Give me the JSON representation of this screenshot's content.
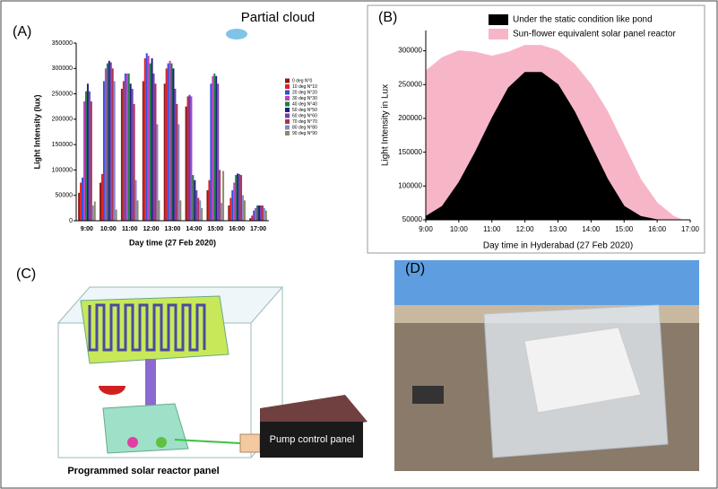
{
  "panel_labels": [
    "(A)",
    "(B)",
    "(C)",
    "(D)"
  ],
  "diagram": {
    "labels": [
      "Programmed solar reactor panel",
      "Pump control panel"
    ]
  },
  "chart_data": [
    {
      "type": "bar",
      "title": "Partial cloud",
      "x_label": "Day time (27 Feb 2020)",
      "y_label": "Light Intensity (lux)",
      "categories": [
        "9:00",
        "10:00",
        "11:00",
        "12:00",
        "13:00",
        "14:00",
        "15:00",
        "16:00",
        "17:00"
      ],
      "ylim": [
        0,
        350000
      ],
      "yticks": [
        0,
        50000,
        100000,
        150000,
        200000,
        250000,
        300000,
        350000
      ],
      "legend": "right",
      "series": [
        {
          "name": "0 deg N°0",
          "color": "#8b1a1a",
          "values": [
            55000,
            75000,
            260000,
            275000,
            270000,
            225000,
            60000,
            30000,
            5000
          ]
        },
        {
          "name": "10 deg N°10",
          "color": "#e02020",
          "values": [
            75000,
            92000,
            275000,
            320000,
            300000,
            245000,
            80000,
            45000,
            10000
          ]
        },
        {
          "name": "20 deg N°20",
          "color": "#3050e0",
          "values": [
            85000,
            275000,
            290000,
            330000,
            310000,
            248000,
            270000,
            60000,
            20000
          ]
        },
        {
          "name": "30 deg N°30",
          "color": "#c040c0",
          "values": [
            235000,
            300000,
            290000,
            325000,
            315000,
            245000,
            285000,
            75000,
            25000
          ]
        },
        {
          "name": "40 deg N°40",
          "color": "#208040",
          "values": [
            255000,
            310000,
            290000,
            310000,
            310000,
            90000,
            290000,
            90000,
            30000
          ]
        },
        {
          "name": "50 deg N°50",
          "color": "#202080",
          "values": [
            270000,
            315000,
            270000,
            320000,
            300000,
            80000,
            285000,
            93000,
            30000
          ]
        },
        {
          "name": "60 deg N°60",
          "color": "#7040b0",
          "values": [
            255000,
            312000,
            260000,
            290000,
            260000,
            60000,
            270000,
            92000,
            30000
          ]
        },
        {
          "name": "70 deg N°70",
          "color": "#b03050",
          "values": [
            235000,
            300000,
            230000,
            270000,
            230000,
            45000,
            100000,
            90000,
            30000
          ]
        },
        {
          "name": "80 deg N°80",
          "color": "#8888c8",
          "values": [
            30000,
            275000,
            80000,
            190000,
            190000,
            40000,
            35000,
            50000,
            25000
          ]
        },
        {
          "name": "90 deg N°90",
          "color": "#8a8a6a",
          "values": [
            38000,
            22000,
            40000,
            40000,
            40000,
            25000,
            98000,
            40000,
            20000
          ]
        }
      ]
    },
    {
      "type": "area",
      "x_label": "Day time in Hyderabad (27 Feb 2020)",
      "y_label": "Light Intensity in Lux",
      "x": [
        9,
        9.5,
        10,
        10.5,
        11,
        11.5,
        12,
        12.5,
        13,
        13.5,
        14,
        14.5,
        15,
        15.5,
        16,
        16.5,
        16.75
      ],
      "xlim": [
        9,
        17
      ],
      "xticks": [
        {
          "value": 9,
          "label": "9:00"
        },
        {
          "value": 10,
          "label": "10:00"
        },
        {
          "value": 11,
          "label": "11:00"
        },
        {
          "value": 12,
          "label": "12:00"
        },
        {
          "value": 13,
          "label": "13:00"
        },
        {
          "value": 14,
          "label": "14:00"
        },
        {
          "value": 15,
          "label": "15:00"
        },
        {
          "value": 16,
          "label": "16:00"
        },
        {
          "value": 17,
          "label": "17:00"
        }
      ],
      "ylim": [
        50000,
        330000
      ],
      "yticks": [
        50000,
        100000,
        150000,
        200000,
        250000,
        300000
      ],
      "legend": "top",
      "series": [
        {
          "name": "Under the static condition like pond",
          "color": "#000000",
          "values": [
            55000,
            70000,
            105000,
            150000,
            200000,
            245000,
            268000,
            268000,
            250000,
            210000,
            160000,
            110000,
            70000,
            55000,
            50000,
            50000,
            50000
          ]
        },
        {
          "name": "Sun-flower equivalent solar panel reactor",
          "color": "#f7b6c8",
          "values": [
            270000,
            290000,
            300000,
            298000,
            292000,
            298000,
            308000,
            308000,
            300000,
            280000,
            250000,
            210000,
            160000,
            110000,
            75000,
            55000,
            50000
          ]
        }
      ]
    }
  ]
}
